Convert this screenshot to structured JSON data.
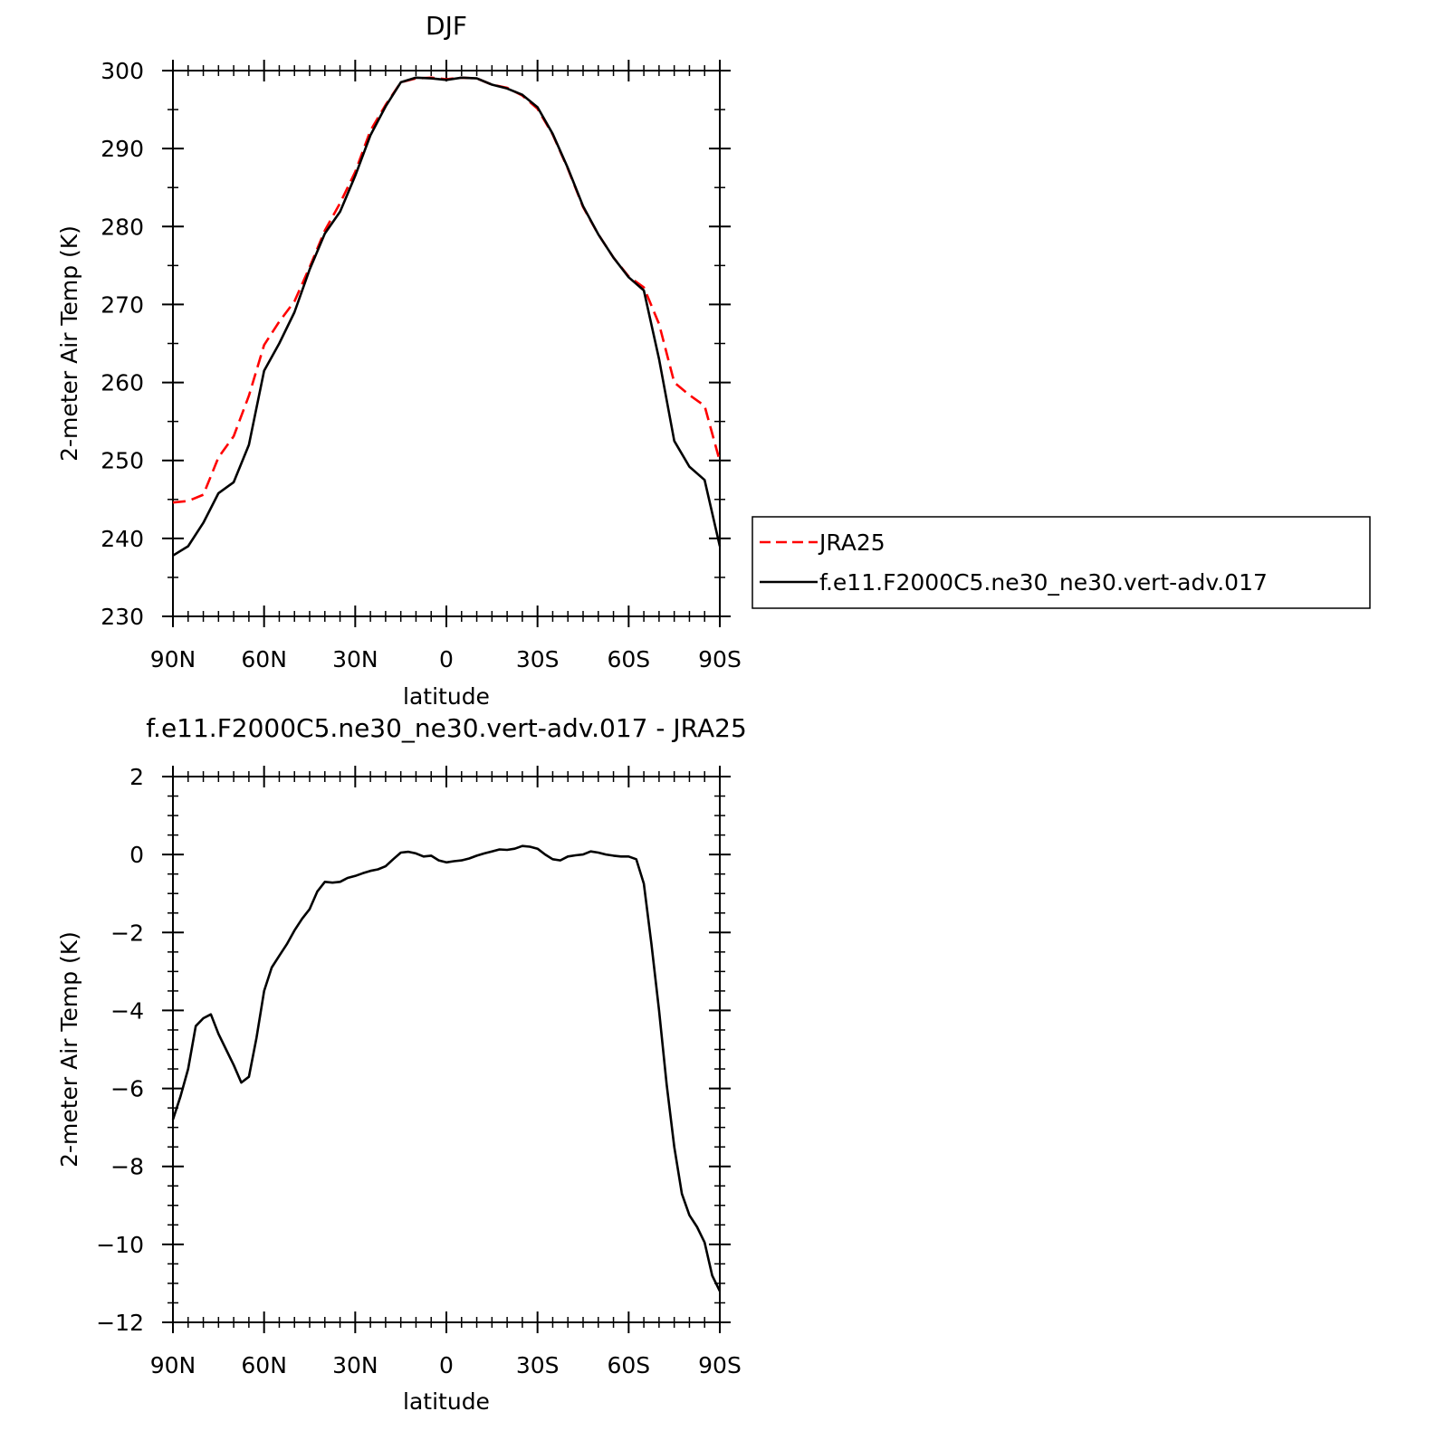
{
  "chart_data": [
    {
      "type": "line",
      "title": "DJF",
      "xlabel": "latitude",
      "ylabel": "2-meter Air Temp (K)",
      "xlim": [
        90,
        -90
      ],
      "ylim": [
        230,
        300
      ],
      "xticks": [
        90,
        60,
        30,
        0,
        -30,
        -60,
        -90
      ],
      "xtick_labels": [
        "90N",
        "60N",
        "30N",
        "0",
        "30S",
        "60S",
        "90S"
      ],
      "yticks": [
        230,
        240,
        250,
        260,
        270,
        280,
        290,
        300
      ],
      "ytick_labels": [
        "230",
        "240",
        "250",
        "260",
        "270",
        "280",
        "290",
        "300"
      ],
      "legend_position": "right",
      "series": [
        {
          "name": "JRA25",
          "color": "#ff0000",
          "dash": "dashed",
          "x": [
            90,
            85,
            80,
            75,
            70,
            65,
            60,
            55,
            50,
            45,
            40,
            35,
            30,
            25,
            20,
            15,
            10,
            5,
            0,
            -5,
            -10,
            -15,
            -20,
            -25,
            -30,
            -35,
            -40,
            -45,
            -50,
            -55,
            -60,
            -65,
            -70,
            -75,
            -80,
            -85,
            -90
          ],
          "y": [
            244.6,
            244.8,
            245.6,
            250.4,
            253.1,
            258.3,
            264.8,
            267.8,
            270.4,
            274.8,
            279.5,
            283.0,
            287.0,
            292.3,
            295.6,
            298.5,
            299.0,
            299.1,
            298.9,
            299.1,
            299.0,
            298.2,
            297.8,
            296.8,
            295.1,
            291.8,
            287.4,
            282.5,
            279.0,
            276.0,
            273.6,
            272.2,
            267.5,
            260.0,
            258.4,
            257.0,
            249.9
          ]
        },
        {
          "name": "f.e11.F2000C5.ne30_ne30.vert-adv.017",
          "color": "#000000",
          "dash": "solid",
          "x": [
            90,
            85,
            80,
            75,
            70,
            65,
            60,
            55,
            50,
            45,
            40,
            35,
            30,
            25,
            20,
            15,
            10,
            5,
            0,
            -5,
            -10,
            -15,
            -20,
            -25,
            -30,
            -35,
            -40,
            -45,
            -50,
            -55,
            -60,
            -65,
            -70,
            -75,
            -80,
            -85,
            -90
          ],
          "y": [
            237.8,
            239.0,
            242.0,
            245.8,
            247.2,
            252.0,
            261.5,
            265.0,
            269.0,
            274.5,
            279.1,
            281.9,
            286.5,
            291.7,
            295.4,
            298.5,
            299.1,
            299.0,
            298.8,
            299.1,
            299.0,
            298.2,
            297.7,
            296.9,
            295.3,
            291.9,
            287.5,
            282.6,
            279.0,
            276.0,
            273.5,
            271.8,
            263.0,
            252.5,
            249.2,
            247.5,
            239.0
          ]
        }
      ]
    },
    {
      "type": "line",
      "title": "f.e11.F2000C5.ne30_ne30.vert-adv.017 - JRA25",
      "xlabel": "latitude",
      "ylabel": "2-meter Air Temp (K)",
      "xlim": [
        90,
        -90
      ],
      "ylim": [
        -12,
        2
      ],
      "xticks": [
        90,
        60,
        30,
        0,
        -30,
        -60,
        -90
      ],
      "xtick_labels": [
        "90N",
        "60N",
        "30N",
        "0",
        "30S",
        "60S",
        "90S"
      ],
      "yticks": [
        -12,
        -10,
        -8,
        -6,
        -4,
        -2,
        0,
        2
      ],
      "ytick_labels": [
        "−12",
        "−10",
        "−8",
        "−6",
        "−4",
        "−2",
        "0",
        "2"
      ],
      "series": [
        {
          "color": "#000000",
          "dash": "solid",
          "x": [
            90,
            87.5,
            85,
            82.5,
            80,
            77.5,
            75,
            72.5,
            70,
            67.5,
            65,
            62.5,
            60,
            57.5,
            55,
            52.5,
            50,
            47.5,
            45,
            42.5,
            40,
            37.5,
            35,
            32.5,
            30,
            27.5,
            25,
            22.5,
            20,
            17.5,
            15,
            12.5,
            10,
            7.5,
            5,
            2.5,
            0,
            -2.5,
            -5,
            -7.5,
            -10,
            -12.5,
            -15,
            -17.5,
            -20,
            -22.5,
            -25,
            -27.5,
            -30,
            -32.5,
            -35,
            -37.5,
            -40,
            -42.5,
            -45,
            -47.5,
            -50,
            -52.5,
            -55,
            -57.5,
            -60,
            -62.5,
            -65,
            -67.5,
            -70,
            -72.5,
            -75,
            -77.5,
            -80,
            -82.5,
            -85,
            -87.5,
            -90
          ],
          "y": [
            -6.8,
            -6.2,
            -5.5,
            -4.4,
            -4.2,
            -4.1,
            -4.6,
            -5.0,
            -5.4,
            -5.85,
            -5.7,
            -4.7,
            -3.5,
            -2.9,
            -2.6,
            -2.3,
            -1.95,
            -1.65,
            -1.4,
            -0.95,
            -0.7,
            -0.72,
            -0.7,
            -0.6,
            -0.55,
            -0.48,
            -0.42,
            -0.38,
            -0.3,
            -0.12,
            0.05,
            0.07,
            0.03,
            -0.05,
            -0.03,
            -0.15,
            -0.2,
            -0.17,
            -0.15,
            -0.1,
            -0.03,
            0.03,
            0.08,
            0.13,
            0.12,
            0.15,
            0.22,
            0.2,
            0.15,
            0.0,
            -0.12,
            -0.15,
            -0.05,
            -0.02,
            0.0,
            0.08,
            0.05,
            0.0,
            -0.03,
            -0.05,
            -0.05,
            -0.12,
            -0.75,
            -2.3,
            -4.0,
            -5.9,
            -7.5,
            -8.7,
            -9.25,
            -9.55,
            -9.95,
            -10.8,
            -11.2
          ]
        }
      ]
    }
  ]
}
